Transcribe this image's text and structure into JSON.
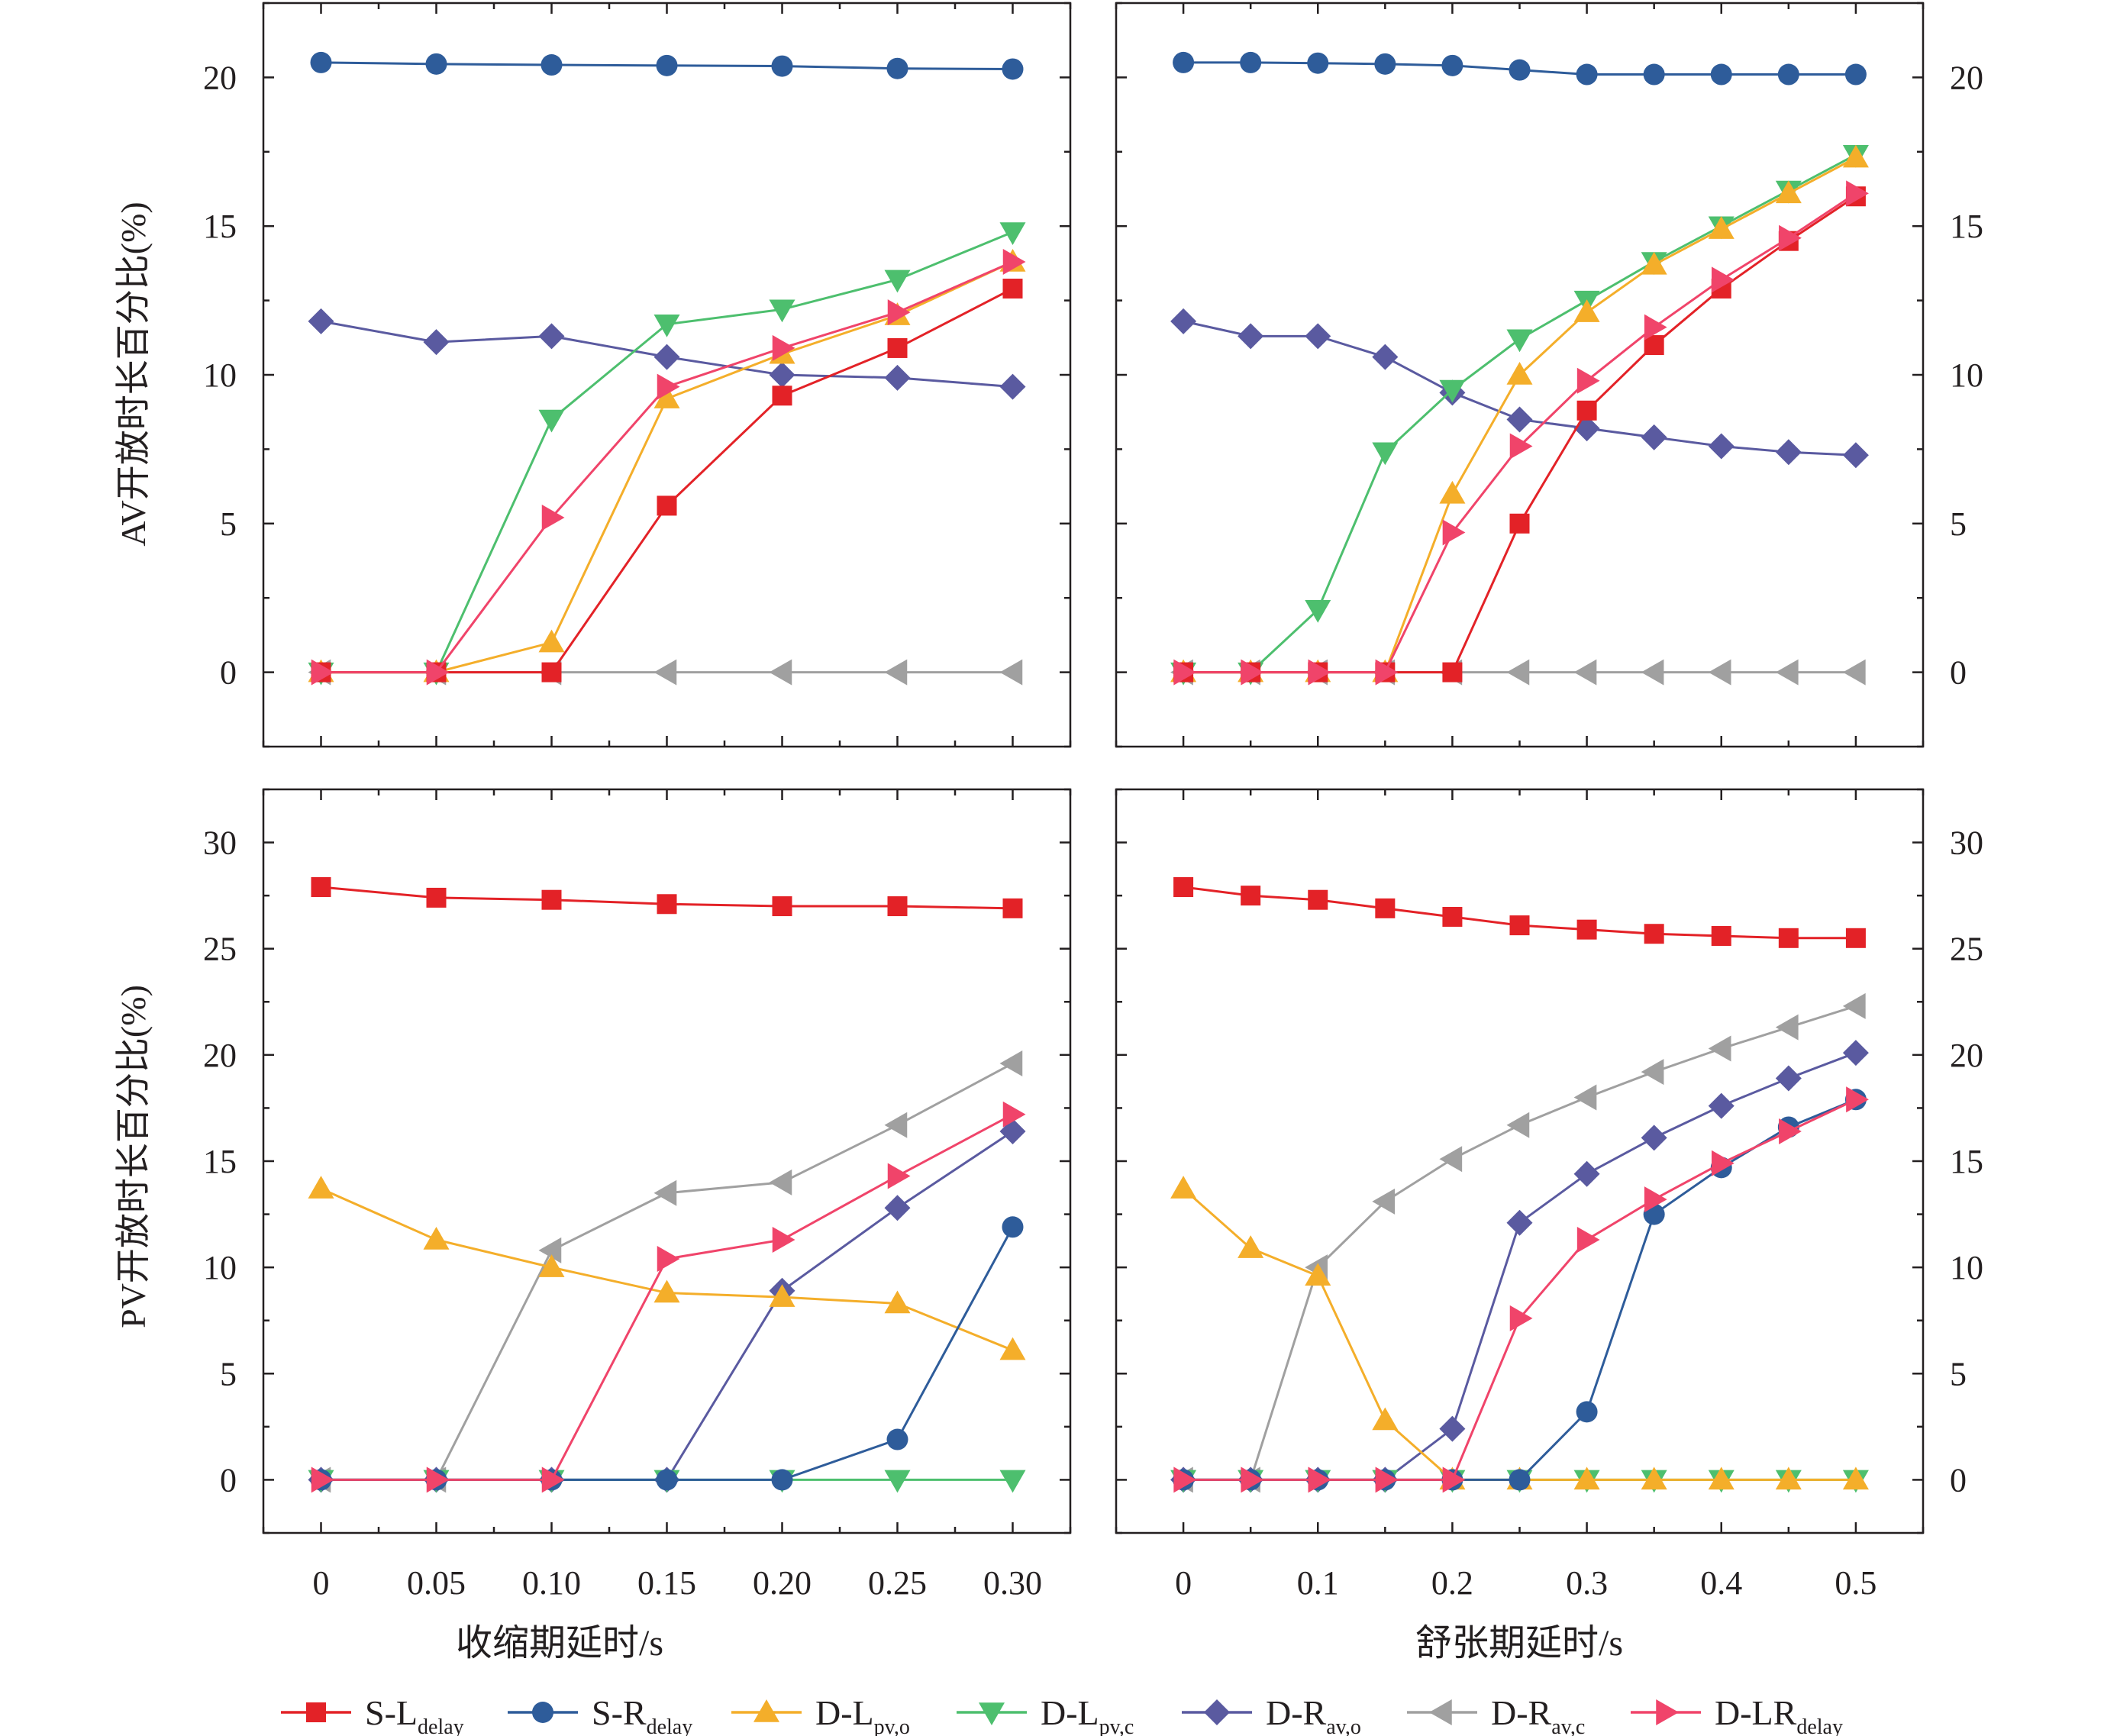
{
  "chart_data": [
    {
      "type": "line",
      "panel": "top-left",
      "ylabel": "AV开放时长百分比(%)",
      "xlabel": "",
      "xticks": [
        "0",
        "0.05",
        "0.10",
        "0.15",
        "0.20",
        "0.25",
        "0.30"
      ],
      "x": [
        0,
        0.05,
        0.1,
        0.15,
        0.2,
        0.25,
        0.3
      ],
      "xlim": [
        -0.025,
        0.325
      ],
      "ylim": [
        -2.5,
        22.5
      ],
      "yticks": [
        0,
        5,
        10,
        15,
        20
      ],
      "series": [
        {
          "name": "S-L_delay",
          "values": [
            0,
            0,
            0,
            5.6,
            9.3,
            10.9,
            12.9
          ]
        },
        {
          "name": "S-R_delay",
          "values": [
            20.5,
            20.45,
            20.42,
            20.4,
            20.38,
            20.3,
            20.28
          ]
        },
        {
          "name": "D-L_pv,o",
          "values": [
            0,
            0,
            1.0,
            9.2,
            10.7,
            12.0,
            13.8
          ]
        },
        {
          "name": "D-L_pv,c",
          "values": [
            0,
            0,
            8.5,
            11.7,
            12.2,
            13.2,
            14.8
          ]
        },
        {
          "name": "D-R_av,o",
          "values": [
            11.8,
            11.1,
            11.3,
            10.6,
            10.0,
            9.9,
            9.6
          ]
        },
        {
          "name": "D-R_av,c",
          "values": [
            0,
            0,
            0,
            0,
            0,
            0,
            0
          ]
        },
        {
          "name": "D-LR_delay",
          "values": [
            0,
            0,
            5.2,
            9.6,
            10.9,
            12.1,
            13.8
          ]
        }
      ]
    },
    {
      "type": "line",
      "panel": "top-right",
      "ylabel": "",
      "xlabel": "",
      "xticks": [
        "0",
        "0.1",
        "0.2",
        "0.3",
        "0.4",
        "0.5"
      ],
      "x": [
        0,
        0.05,
        0.1,
        0.15,
        0.2,
        0.25,
        0.3,
        0.35,
        0.4,
        0.45,
        0.5
      ],
      "xlim": [
        -0.05,
        0.55
      ],
      "ylim": [
        -2.5,
        22.5
      ],
      "yticks": [
        0,
        5,
        10,
        15,
        20
      ],
      "series": [
        {
          "name": "S-L_delay",
          "values": [
            0,
            0,
            0,
            0,
            0,
            5.0,
            8.8,
            11.0,
            12.9,
            14.5,
            16.0
          ]
        },
        {
          "name": "S-R_delay",
          "values": [
            20.5,
            20.5,
            20.48,
            20.45,
            20.4,
            20.25,
            20.1,
            20.1,
            20.1,
            20.1,
            20.1
          ]
        },
        {
          "name": "D-L_pv,o",
          "values": [
            0,
            0,
            0,
            0,
            6.0,
            10.0,
            12.1,
            13.7,
            14.9,
            16.1,
            17.3
          ]
        },
        {
          "name": "D-L_pv,c",
          "values": [
            0,
            0,
            2.1,
            7.4,
            9.5,
            11.2,
            12.5,
            13.8,
            15.0,
            16.2,
            17.4
          ]
        },
        {
          "name": "D-R_av,o",
          "values": [
            11.8,
            11.3,
            11.3,
            10.6,
            9.4,
            8.5,
            8.2,
            7.9,
            7.6,
            7.4,
            7.3
          ]
        },
        {
          "name": "D-R_av,c",
          "values": [
            0,
            0,
            0,
            0,
            0,
            0,
            0,
            0,
            0,
            0,
            0
          ]
        },
        {
          "name": "D-LR_delay",
          "values": [
            0,
            0,
            0,
            0,
            4.7,
            7.6,
            9.8,
            11.6,
            13.2,
            14.6,
            16.1
          ]
        }
      ]
    },
    {
      "type": "line",
      "panel": "bottom-left",
      "ylabel": "PV开放时长百分比(%)",
      "xlabel": "收缩期延时/s",
      "xticks": [
        "0",
        "0.05",
        "0.10",
        "0.15",
        "0.20",
        "0.25",
        "0.30"
      ],
      "x": [
        0,
        0.05,
        0.1,
        0.15,
        0.2,
        0.25,
        0.3
      ],
      "xlim": [
        -0.025,
        0.325
      ],
      "ylim": [
        -2.5,
        32.5
      ],
      "yticks": [
        0,
        5,
        10,
        15,
        20,
        25,
        30
      ],
      "series": [
        {
          "name": "S-L_delay",
          "values": [
            27.9,
            27.4,
            27.3,
            27.1,
            27.0,
            27.0,
            26.9
          ]
        },
        {
          "name": "S-R_delay",
          "values": [
            0,
            0,
            0,
            0,
            0,
            1.9,
            11.9
          ]
        },
        {
          "name": "D-L_pv,o",
          "values": [
            13.7,
            11.3,
            10.0,
            8.8,
            8.6,
            8.3,
            6.1
          ]
        },
        {
          "name": "D-L_pv,c",
          "values": [
            0,
            0,
            0,
            0,
            0,
            0,
            0
          ]
        },
        {
          "name": "D-R_av,o",
          "values": [
            0,
            0,
            0,
            0,
            8.9,
            12.8,
            16.4
          ]
        },
        {
          "name": "D-R_av,c",
          "values": [
            0,
            0,
            10.8,
            13.5,
            14.0,
            16.7,
            19.6
          ]
        },
        {
          "name": "D-LR_delay",
          "values": [
            0,
            0,
            0,
            10.4,
            11.3,
            14.3,
            17.2
          ]
        }
      ]
    },
    {
      "type": "line",
      "panel": "bottom-right",
      "ylabel": "",
      "xlabel": "舒张期延时/s",
      "xticks": [
        "0",
        "0.1",
        "0.2",
        "0.3",
        "0.4",
        "0.5"
      ],
      "x": [
        0,
        0.05,
        0.1,
        0.15,
        0.2,
        0.25,
        0.3,
        0.35,
        0.4,
        0.45,
        0.5
      ],
      "xlim": [
        -0.05,
        0.55
      ],
      "ylim": [
        -2.5,
        32.5
      ],
      "yticks": [
        0,
        5,
        10,
        15,
        20,
        25,
        30
      ],
      "series": [
        {
          "name": "S-L_delay",
          "values": [
            27.9,
            27.5,
            27.3,
            26.9,
            26.5,
            26.1,
            25.9,
            25.7,
            25.6,
            25.5,
            25.5
          ]
        },
        {
          "name": "S-R_delay",
          "values": [
            0,
            0,
            0,
            0,
            0,
            0,
            3.2,
            12.5,
            14.7,
            16.6,
            17.9
          ]
        },
        {
          "name": "D-L_pv,o",
          "values": [
            13.7,
            10.9,
            9.6,
            2.8,
            0,
            0,
            0,
            0,
            0,
            0,
            0
          ]
        },
        {
          "name": "D-L_pv,c",
          "values": [
            0,
            0,
            0,
            0,
            0,
            0,
            0,
            0,
            0,
            0,
            0
          ]
        },
        {
          "name": "D-R_av,o",
          "values": [
            0,
            0,
            0,
            0,
            2.4,
            12.1,
            14.4,
            16.1,
            17.6,
            18.9,
            20.1
          ]
        },
        {
          "name": "D-R_av,c",
          "values": [
            0,
            0,
            10.0,
            13.1,
            15.1,
            16.7,
            18.0,
            19.2,
            20.3,
            21.3,
            22.3
          ]
        },
        {
          "name": "D-LR_delay",
          "values": [
            0,
            0,
            0,
            0,
            0,
            7.6,
            11.3,
            13.2,
            14.9,
            16.4,
            17.9
          ]
        }
      ]
    }
  ],
  "legend": [
    {
      "main": "S-L",
      "sub": "delay",
      "color": "#e32227",
      "marker": "square"
    },
    {
      "main": "S-R",
      "sub": "delay",
      "color": "#2e5c9a",
      "marker": "circle"
    },
    {
      "main": "D-L",
      "sub": "pv,o",
      "color": "#f4ae2a",
      "marker": "triangle-up"
    },
    {
      "main": "D-L",
      "sub": "pv,c",
      "color": "#4dbf6e",
      "marker": "triangle-down"
    },
    {
      "main": "D-R",
      "sub": "av,o",
      "color": "#5a5aa0",
      "marker": "diamond"
    },
    {
      "main": "D-R",
      "sub": "av,c",
      "color": "#a0a0a0",
      "marker": "triangle-left"
    },
    {
      "main": "D-LR",
      "sub": "delay",
      "color": "#f0446a",
      "marker": "triangle-right"
    }
  ],
  "legend_placement": "bottom",
  "grid": false
}
